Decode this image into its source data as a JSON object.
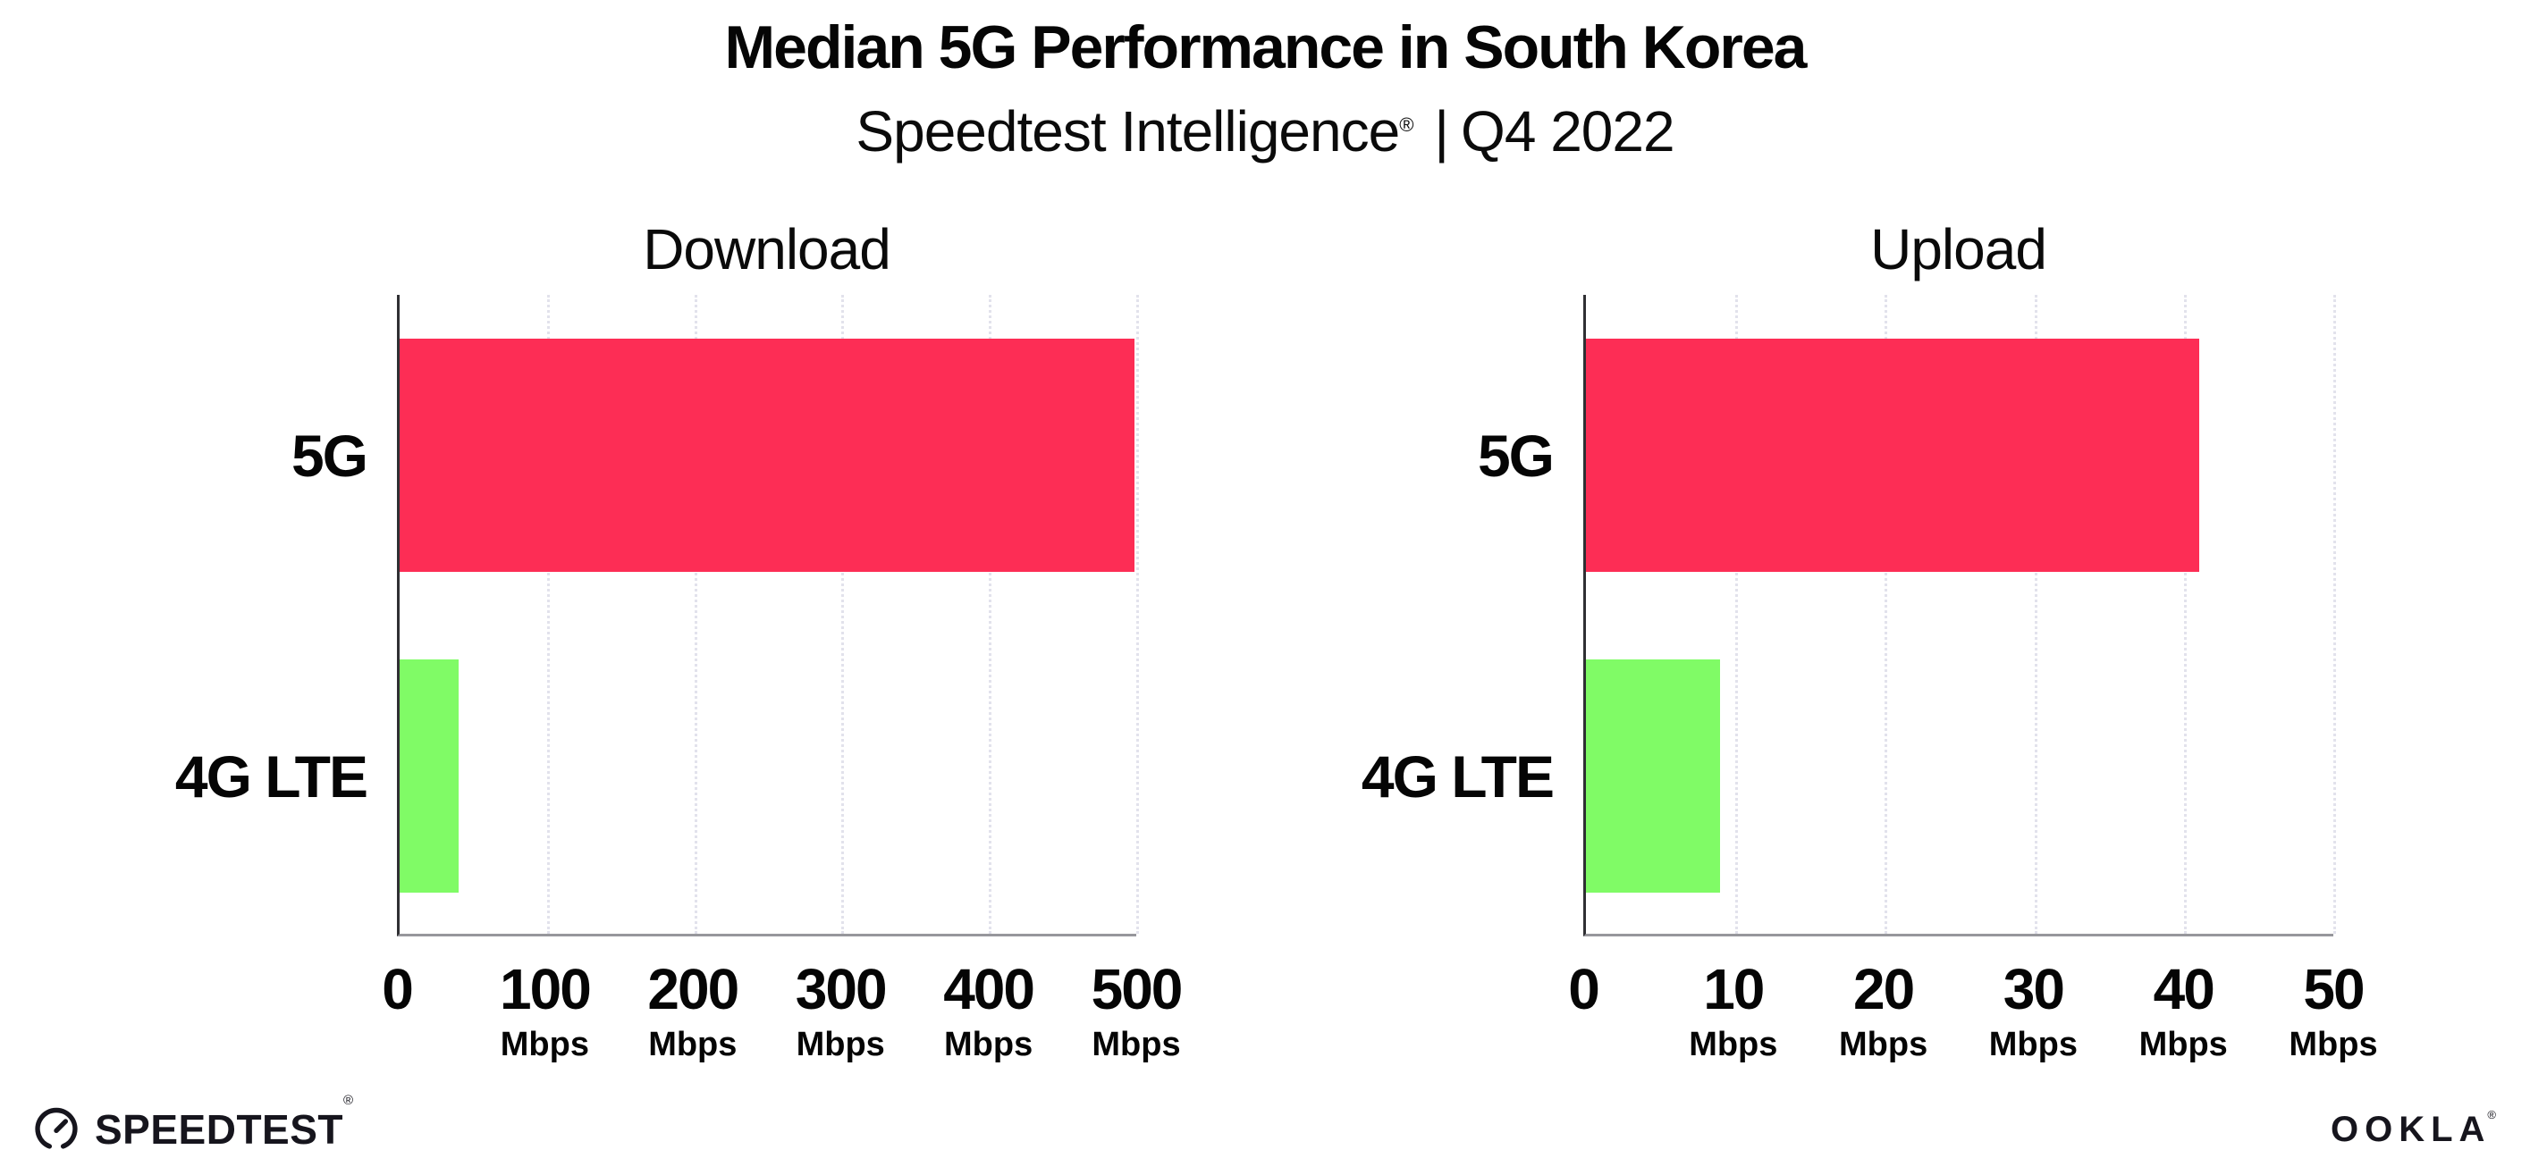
{
  "header": {
    "title": "Median 5G Performance in South Korea",
    "subtitle_brand": "Speedtest Intelligence",
    "subtitle_reg": "®",
    "subtitle_sep": "|",
    "subtitle_period": "Q4 2022"
  },
  "colors": {
    "bar_5g": "#fd2d55",
    "bar_4g_lte": "#80fb66",
    "axis_y": "#2f2f33",
    "axis_x": "#97979c",
    "gridline": "#e2e2ec",
    "text": "#050505",
    "logo": "#16151d"
  },
  "chart_data": [
    {
      "type": "bar",
      "orientation": "horizontal",
      "title": "Download",
      "categories": [
        "5G",
        "4G LTE"
      ],
      "values": [
        499,
        40
      ],
      "unit": "Mbps",
      "xlim": [
        0,
        500
      ],
      "xticks": [
        0,
        100,
        200,
        300,
        400,
        500
      ],
      "grid": "dotted-vertical",
      "legend": "none",
      "series_colors": [
        "#fd2d55",
        "#80fb66"
      ]
    },
    {
      "type": "bar",
      "orientation": "horizontal",
      "title": "Upload",
      "categories": [
        "5G",
        "4G LTE"
      ],
      "values": [
        41,
        9
      ],
      "unit": "Mbps",
      "xlim": [
        0,
        50
      ],
      "xticks": [
        0,
        10,
        20,
        30,
        40,
        50
      ],
      "grid": "dotted-vertical",
      "legend": "none",
      "series_colors": [
        "#fd2d55",
        "#80fb66"
      ]
    }
  ],
  "footer": {
    "speedtest_label": "SPEEDTEST",
    "speedtest_reg": "®",
    "ookla_label": "OOKLA",
    "ookla_reg": "®"
  }
}
